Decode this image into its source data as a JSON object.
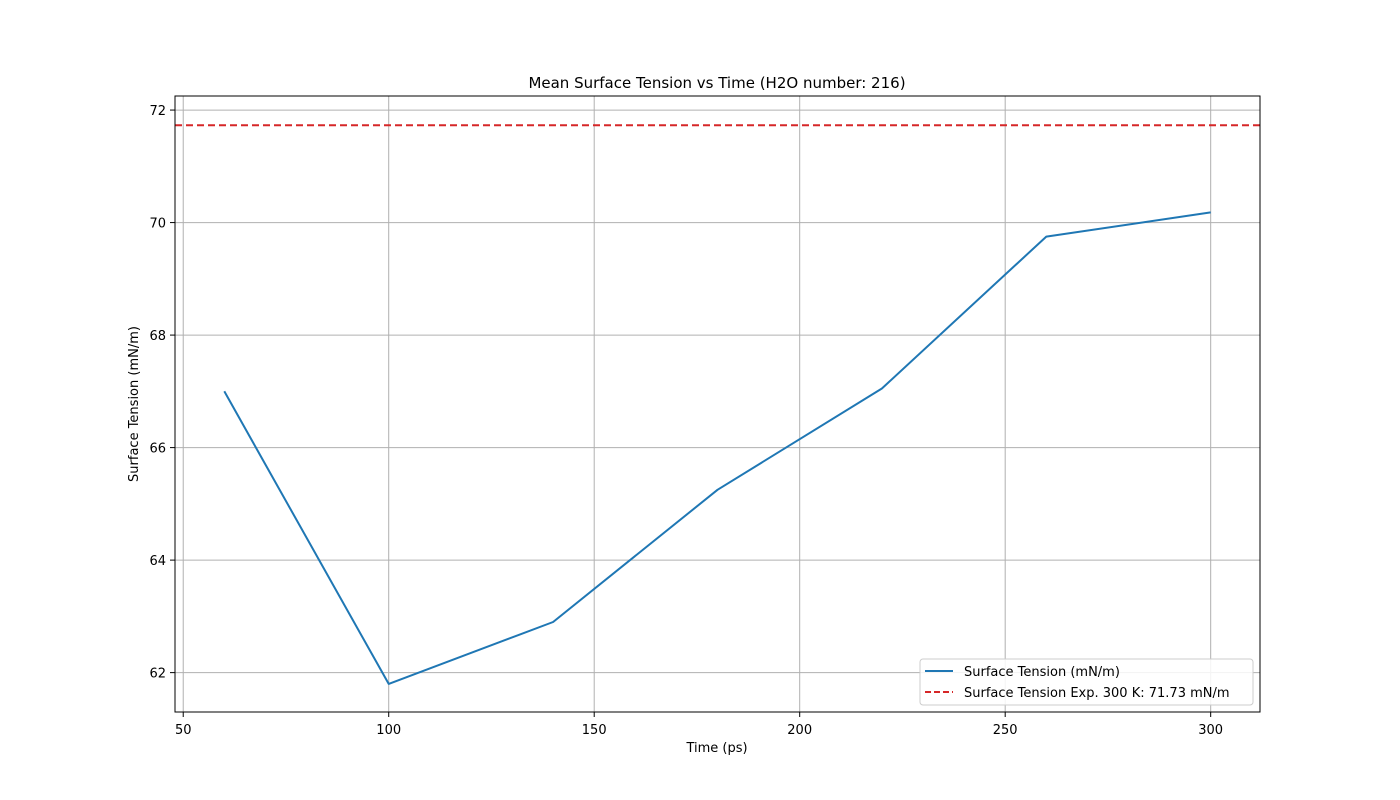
{
  "chart_data": {
    "type": "line",
    "title": "Mean Surface Tension vs Time (H2O number: 216)",
    "xlabel": "Time (ps)",
    "ylabel": "Surface Tension (mN/m)",
    "xlim": [
      48,
      312
    ],
    "ylim": [
      61.3,
      72.25
    ],
    "xticks": [
      50,
      100,
      150,
      200,
      250,
      300
    ],
    "yticks": [
      62,
      64,
      66,
      68,
      70,
      72
    ],
    "grid": true,
    "legend_position": "lower-right",
    "series": [
      {
        "name": "Surface Tension (mN/m)",
        "color": "#1f77b4",
        "style": "solid",
        "x": [
          60,
          100,
          140,
          180,
          220,
          260,
          300
        ],
        "y": [
          67.0,
          61.8,
          62.9,
          65.25,
          67.05,
          69.75,
          70.18
        ]
      }
    ],
    "reference_lines": [
      {
        "name": "Surface Tension Exp. 300 K: 71.73 mN/m",
        "color": "#d62728",
        "style": "dashed",
        "y": 71.73
      }
    ]
  }
}
